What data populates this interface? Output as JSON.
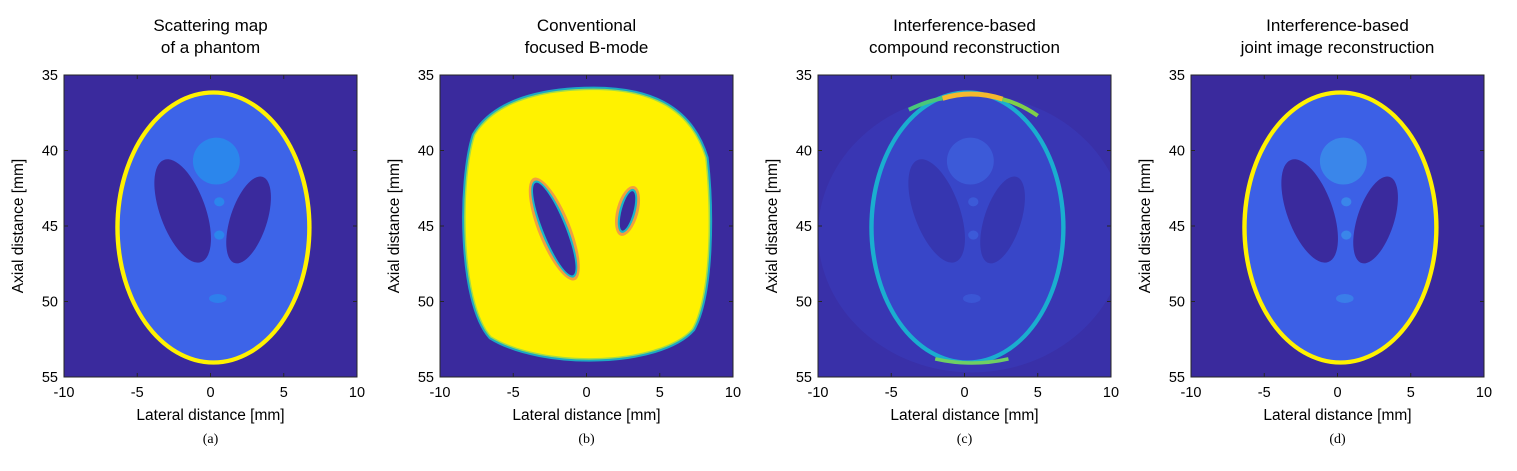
{
  "chart_data": [
    {
      "type": "heatmap",
      "title": [
        "Scattering map",
        "of a phantom"
      ],
      "xlabel": "Lateral distance [mm]",
      "ylabel": "Axial distance [mm]",
      "xlim": [
        -10,
        10
      ],
      "ylim": [
        35,
        55
      ],
      "y_reversed": true,
      "xticks": [
        -10,
        -5,
        0,
        5,
        10
      ],
      "yticks": [
        35,
        40,
        45,
        50,
        55
      ],
      "caption": "(a)",
      "render": "phantom",
      "background_color": "#3a2a9d",
      "tissue_color": "#3d64e8",
      "skull_color": "#fff200",
      "hole_color": "#3a2a9d",
      "insert_color": "#2b86ec"
    },
    {
      "type": "heatmap",
      "title": [
        "Conventional",
        "focused B-mode"
      ],
      "xlabel": "Lateral distance [mm]",
      "ylabel": "Axial distance [mm]",
      "xlim": [
        -10,
        10
      ],
      "ylim": [
        35,
        55
      ],
      "y_reversed": true,
      "xticks": [
        -10,
        -5,
        0,
        5,
        10
      ],
      "yticks": [
        35,
        40,
        45,
        50,
        55
      ],
      "caption": "(b)",
      "render": "bmode",
      "background_color": "#3a2a9d",
      "fill_color": "#fff200",
      "edge_color": "#1ab7c8"
    },
    {
      "type": "heatmap",
      "title": [
        "Interference-based",
        "compound reconstruction"
      ],
      "xlabel": "Lateral distance [mm]",
      "ylabel": "Axial distance [mm]",
      "xlim": [
        -10,
        10
      ],
      "ylim": [
        35,
        55
      ],
      "y_reversed": true,
      "xticks": [
        -10,
        -5,
        0,
        5,
        10
      ],
      "yticks": [
        35,
        40,
        45,
        50,
        55
      ],
      "caption": "(c)",
      "render": "compound",
      "background_color": "#3930a8",
      "tissue_color": "#3846c8",
      "skull_color": "#1aaecf",
      "skull_top_color": "#f5b82e",
      "hole_color": "#3636b0",
      "insert_color": "#3c5ad8"
    },
    {
      "type": "heatmap",
      "title": [
        "Interference-based",
        "joint image reconstruction"
      ],
      "xlabel": "Lateral distance [mm]",
      "ylabel": "Axial distance [mm]",
      "xlim": [
        -10,
        10
      ],
      "ylim": [
        35,
        55
      ],
      "y_reversed": true,
      "xticks": [
        -10,
        -5,
        0,
        5,
        10
      ],
      "yticks": [
        35,
        40,
        45,
        50,
        55
      ],
      "caption": "(d)",
      "render": "joint",
      "background_color": "#3a2a9d",
      "tissue_color": "#3c60e6",
      "skull_color": "#fff200",
      "hole_color": "#3a2a9d",
      "insert_color": "#3a86ea"
    }
  ]
}
